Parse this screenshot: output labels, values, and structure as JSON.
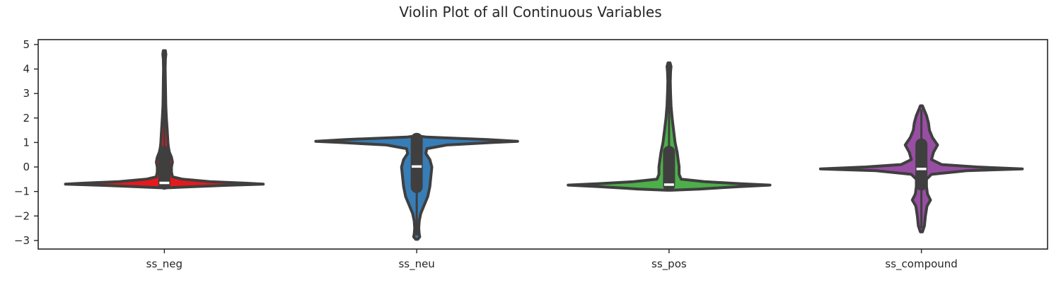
{
  "chart_data": {
    "type": "violin",
    "title": "Violin Plot of all Continuous Variables",
    "xlabel": "",
    "ylabel": "",
    "ylim": [
      -3.35,
      5.2
    ],
    "yticks": [
      -3,
      -2,
      -1,
      0,
      1,
      2,
      3,
      4,
      5
    ],
    "categories": [
      "ss_neg",
      "ss_neu",
      "ss_pos",
      "ss_compound"
    ],
    "grid": false,
    "violins": [
      {
        "name": "ss_neg",
        "color": "#e41a1c",
        "median": -0.65,
        "iqr": [
          -0.68,
          0.62
        ],
        "whisker": [
          -0.72,
          4.7
        ],
        "profile": [
          [
            -0.85,
            0.02
          ],
          [
            -0.8,
            0.3
          ],
          [
            -0.75,
            0.6
          ],
          [
            -0.7,
            0.98
          ],
          [
            -0.66,
            0.8
          ],
          [
            -0.6,
            0.45
          ],
          [
            -0.5,
            0.18
          ],
          [
            -0.4,
            0.08
          ],
          [
            -0.2,
            0.07
          ],
          [
            0,
            0.07
          ],
          [
            0.2,
            0.08
          ],
          [
            0.4,
            0.07
          ],
          [
            0.6,
            0.05
          ],
          [
            0.8,
            0.04
          ],
          [
            1,
            0.035
          ],
          [
            1.5,
            0.028
          ],
          [
            2,
            0.02
          ],
          [
            2.5,
            0.014
          ],
          [
            3,
            0.012
          ],
          [
            3.5,
            0.01
          ],
          [
            4,
            0.008
          ],
          [
            4.4,
            0.01
          ],
          [
            4.6,
            0.015
          ],
          [
            4.75,
            0.01
          ]
        ]
      },
      {
        "name": "ss_neu",
        "color": "#377eb8",
        "median": 0.02,
        "iqr": [
          -0.82,
          1.15
        ],
        "whisker": [
          -2.8,
          1.25
        ],
        "profile": [
          [
            -2.95,
            0.01
          ],
          [
            -2.85,
            0.03
          ],
          [
            -2.75,
            0.025
          ],
          [
            -2.5,
            0.02
          ],
          [
            -2.2,
            0.025
          ],
          [
            -1.9,
            0.04
          ],
          [
            -1.6,
            0.07
          ],
          [
            -1.2,
            0.11
          ],
          [
            -0.8,
            0.13
          ],
          [
            -0.4,
            0.14
          ],
          [
            0,
            0.15
          ],
          [
            0.3,
            0.13
          ],
          [
            0.55,
            0.09
          ],
          [
            0.75,
            0.1
          ],
          [
            0.9,
            0.3
          ],
          [
            1.0,
            0.75
          ],
          [
            1.05,
            1.0
          ],
          [
            1.12,
            0.7
          ],
          [
            1.18,
            0.35
          ],
          [
            1.22,
            0.1
          ],
          [
            1.27,
            0.01
          ]
        ]
      },
      {
        "name": "ss_pos",
        "color": "#4daf4a",
        "median": -0.72,
        "iqr": [
          -0.75,
          0.62
        ],
        "whisker": [
          -0.8,
          4.2
        ],
        "profile": [
          [
            -0.95,
            0.02
          ],
          [
            -0.9,
            0.3
          ],
          [
            -0.8,
            0.7
          ],
          [
            -0.74,
            1.0
          ],
          [
            -0.68,
            0.7
          ],
          [
            -0.6,
            0.35
          ],
          [
            -0.5,
            0.12
          ],
          [
            -0.3,
            0.1
          ],
          [
            0,
            0.1
          ],
          [
            0.3,
            0.09
          ],
          [
            0.6,
            0.08
          ],
          [
            1,
            0.06
          ],
          [
            1.5,
            0.045
          ],
          [
            2,
            0.03
          ],
          [
            2.5,
            0.02
          ],
          [
            3,
            0.015
          ],
          [
            3.5,
            0.012
          ],
          [
            3.9,
            0.015
          ],
          [
            4.1,
            0.02
          ],
          [
            4.25,
            0.01
          ]
        ]
      },
      {
        "name": "ss_compound",
        "color": "#984ea3",
        "median": -0.08,
        "iqr": [
          -0.72,
          0.92
        ],
        "whisker": [
          -2.5,
          2.35
        ],
        "profile": [
          [
            -2.65,
            0.01
          ],
          [
            -2.4,
            0.03
          ],
          [
            -2.0,
            0.04
          ],
          [
            -1.6,
            0.055
          ],
          [
            -1.35,
            0.09
          ],
          [
            -1.1,
            0.06
          ],
          [
            -0.8,
            0.05
          ],
          [
            -0.5,
            0.05
          ],
          [
            -0.3,
            0.1
          ],
          [
            -0.15,
            0.45
          ],
          [
            -0.08,
            1.0
          ],
          [
            0,
            0.55
          ],
          [
            0.1,
            0.2
          ],
          [
            0.3,
            0.1
          ],
          [
            0.6,
            0.12
          ],
          [
            0.9,
            0.16
          ],
          [
            1.2,
            0.11
          ],
          [
            1.5,
            0.08
          ],
          [
            1.8,
            0.07
          ],
          [
            2.1,
            0.05
          ],
          [
            2.35,
            0.025
          ],
          [
            2.5,
            0.01
          ]
        ]
      }
    ]
  }
}
